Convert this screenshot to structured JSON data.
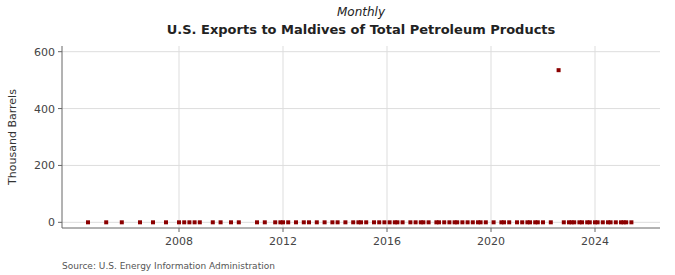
{
  "chart_data": {
    "type": "scatter",
    "subtitle": "Monthly",
    "title": "U.S. Exports to Maldives of Total Petroleum Products",
    "ylabel": "Thousand Barrels",
    "annotations": [
      "Source: U.S. Energy Information Administration"
    ],
    "color": "#8b0000",
    "marker": "square",
    "grid": true,
    "xlim": [
      2003.5,
      2026.5
    ],
    "xticks": [
      2008,
      2012,
      2016,
      2020,
      2024
    ],
    "ylim": [
      -20,
      620
    ],
    "yticks": [
      0,
      200,
      400,
      600
    ],
    "x": [
      2004.5,
      2005.2,
      2005.8,
      2006.5,
      2007.0,
      2007.5,
      2008.0,
      2008.2,
      2008.4,
      2008.6,
      2008.8,
      2009.3,
      2009.6,
      2010.0,
      2010.3,
      2011.0,
      2011.3,
      2011.7,
      2011.9,
      2012.0,
      2012.2,
      2012.5,
      2012.8,
      2013.0,
      2013.3,
      2013.6,
      2013.9,
      2014.1,
      2014.4,
      2014.7,
      2014.9,
      2015.0,
      2015.2,
      2015.5,
      2015.7,
      2015.9,
      2016.1,
      2016.3,
      2016.4,
      2016.6,
      2016.9,
      2017.1,
      2017.3,
      2017.4,
      2017.6,
      2017.9,
      2018.0,
      2018.2,
      2018.4,
      2018.6,
      2018.7,
      2018.9,
      2019.1,
      2019.3,
      2019.5,
      2019.6,
      2019.8,
      2020.1,
      2020.4,
      2020.5,
      2020.7,
      2021.0,
      2021.2,
      2021.4,
      2021.5,
      2021.7,
      2021.8,
      2022.0,
      2022.3,
      2022.6,
      2022.8,
      2023.0,
      2023.1,
      2023.2,
      2023.4,
      2023.5,
      2023.7,
      2023.8,
      2024.0,
      2024.1,
      2024.3,
      2024.5,
      2024.6,
      2024.8,
      2025.0,
      2025.1,
      2025.2,
      2025.4
    ],
    "values": [
      0,
      0,
      0,
      0,
      0,
      0,
      0,
      0,
      0,
      0,
      0,
      0,
      0,
      0,
      0,
      0,
      0,
      0,
      0,
      0,
      0,
      0,
      0,
      0,
      0,
      0,
      0,
      0,
      0,
      0,
      0,
      0,
      0,
      0,
      0,
      0,
      0,
      0,
      0,
      0,
      0,
      0,
      0,
      0,
      0,
      0,
      0,
      0,
      0,
      0,
      0,
      0,
      0,
      0,
      0,
      0,
      0,
      0,
      0,
      0,
      0,
      0,
      0,
      0,
      0,
      0,
      0,
      0,
      0,
      535,
      0,
      0,
      0,
      0,
      0,
      0,
      0,
      0,
      0,
      0,
      0,
      0,
      0,
      0,
      0,
      0,
      0,
      0
    ]
  }
}
